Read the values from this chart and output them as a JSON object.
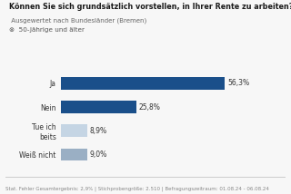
{
  "title_bold": "Können Sie sich grundsätzlich vorstellen, in Ihrer Rente zu arbeiten?",
  "title_suffix": " Ausgewertet nach Bundesländer (Bremen)",
  "subtitle": "50-Jährige und älter",
  "footer": "Stat. Fehler Gesamtergebnis: 2,9% | Stichprobengröße: 2.510 | Befragungszeitraum: 01.08.24 - 06.08.24",
  "labels": [
    "Ja",
    "Nein",
    "Tue ich\nbeits",
    "Weiß nicht"
  ],
  "values": [
    56.3,
    25.8,
    8.9,
    9.0
  ],
  "value_labels": [
    "56,3%",
    "25,8%",
    "8,9%",
    "9,0%"
  ],
  "bar_colors": [
    "#1a4f8a",
    "#1a4f8a",
    "#c5d5e4",
    "#9aafc4"
  ],
  "bg_color": "#f7f7f7",
  "xlim": [
    0,
    65
  ],
  "title_fontsize": 5.8,
  "suffix_fontsize": 5.0,
  "subtitle_fontsize": 5.2,
  "label_fontsize": 5.5,
  "value_fontsize": 5.5,
  "footer_fontsize": 4.0
}
